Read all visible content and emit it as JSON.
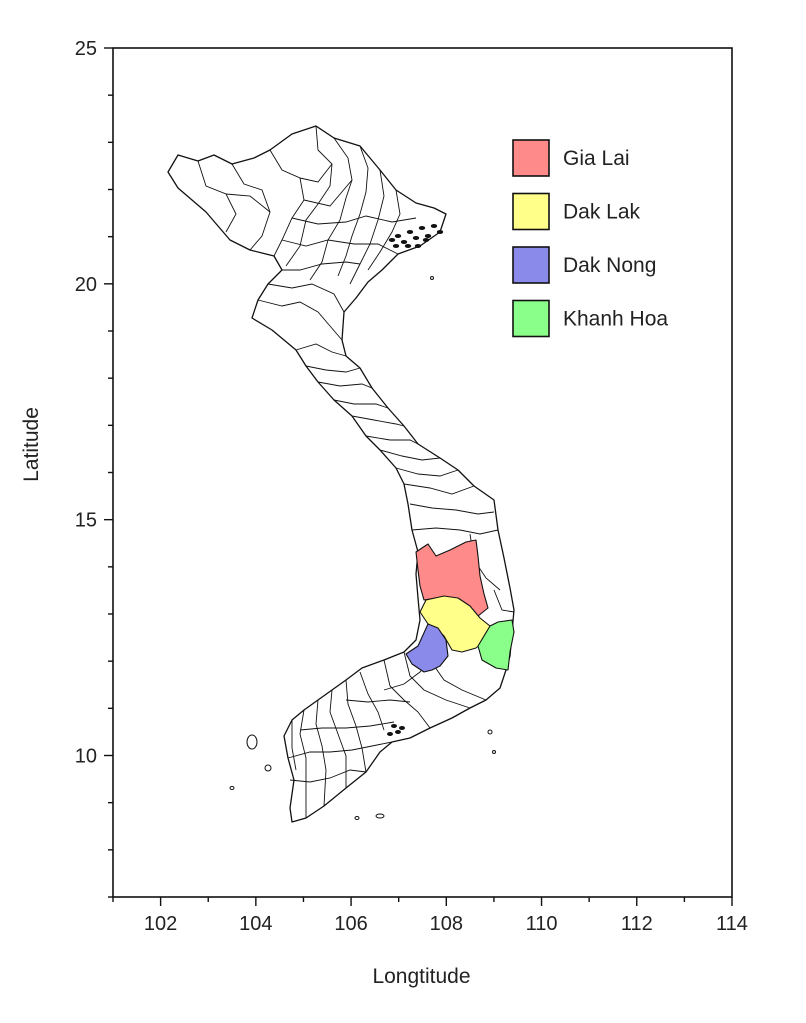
{
  "chart_data": {
    "type": "map",
    "title": "",
    "xlabel": "Longtitude",
    "ylabel": "Latitude",
    "xlim": [
      101,
      114
    ],
    "ylim": [
      7,
      25
    ],
    "x_ticks": [
      102,
      104,
      106,
      108,
      110,
      112,
      114
    ],
    "y_ticks": [
      10,
      15,
      20,
      25
    ],
    "x_minor_step": 1,
    "y_minor_step": 1,
    "grid": false,
    "legend_position": "top-right",
    "base_fill": "#ffffff",
    "base_outline": "#111111",
    "highlighted_regions": [
      {
        "name": "Gia Lai",
        "color": "#ff8a8a"
      },
      {
        "name": "Dak Lak",
        "color": "#ffff8a"
      },
      {
        "name": "Dak Nong",
        "color": "#8a8aea"
      },
      {
        "name": "Khanh Hoa",
        "color": "#8aff8a"
      }
    ]
  }
}
